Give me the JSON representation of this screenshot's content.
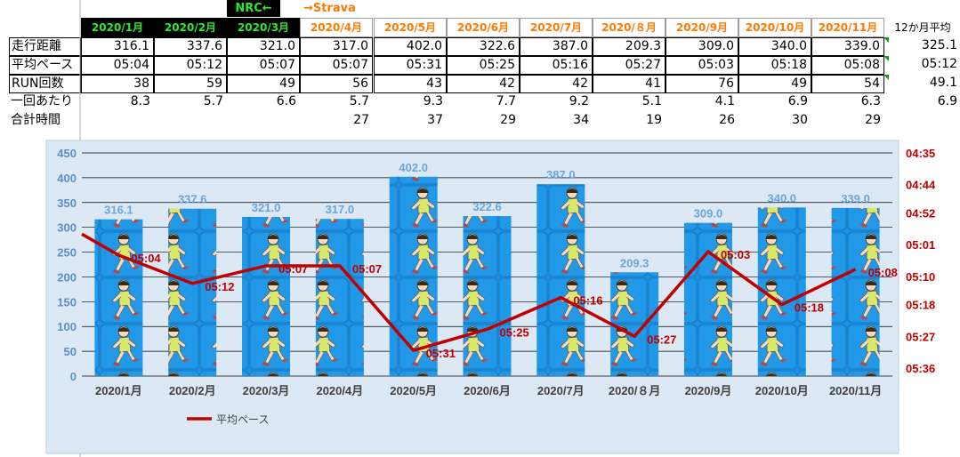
{
  "banner": {
    "left": "NRC←",
    "right": "→Strava"
  },
  "table": {
    "months": [
      {
        "label": "2020/1月",
        "src": "nrc"
      },
      {
        "label": "2020/2月",
        "src": "nrc"
      },
      {
        "label": "2020/3月",
        "src": "nrc"
      },
      {
        "label": "2020/4月",
        "src": "strava"
      },
      {
        "label": "2020/5月",
        "src": "strava"
      },
      {
        "label": "2020/6月",
        "src": "strava"
      },
      {
        "label": "2020/7月",
        "src": "strava"
      },
      {
        "label": "2020/８月",
        "src": "strava"
      },
      {
        "label": "2020/9月",
        "src": "strava"
      },
      {
        "label": "2020/10月",
        "src": "strava"
      },
      {
        "label": "2020/11月",
        "src": "strava"
      }
    ],
    "avg_header": "12か月平均",
    "rows": [
      {
        "label": "走行距離",
        "values": [
          "316.1",
          "337.6",
          "321.0",
          "317.0",
          "402.0",
          "322.6",
          "387.0",
          "209.3",
          "309.0",
          "340.0",
          "339.0"
        ],
        "avg": "325.1",
        "boxed": true
      },
      {
        "label": "平均ペース",
        "values": [
          "05:04",
          "05:12",
          "05:07",
          "05:07",
          "05:31",
          "05:25",
          "05:16",
          "05:27",
          "05:03",
          "05:18",
          "05:08"
        ],
        "avg": "05:12",
        "boxed": true
      },
      {
        "label": "RUN回数",
        "values": [
          "38",
          "59",
          "49",
          "56",
          "43",
          "42",
          "42",
          "41",
          "76",
          "49",
          "54"
        ],
        "avg": "49.1",
        "boxed": true
      },
      {
        "label": "一回あたり",
        "values": [
          "8.3",
          "5.7",
          "6.6",
          "5.7",
          "9.3",
          "7.7",
          "9.2",
          "5.1",
          "4.1",
          "6.9",
          "6.3"
        ],
        "avg": "6.9",
        "boxed": false
      },
      {
        "label": "合計時間",
        "values": [
          "",
          "",
          "",
          "27",
          "37",
          "29",
          "34",
          "19",
          "26",
          "30",
          "29"
        ],
        "avg": "",
        "boxed": false
      }
    ]
  },
  "chart_data": {
    "type": "bar",
    "categories": [
      "2020/1月",
      "2020/2月",
      "2020/3月",
      "2020/4月",
      "2020/5月",
      "2020/6月",
      "2020/7月",
      "2020/８月",
      "2020/9月",
      "2020/10月",
      "2020/11月"
    ],
    "series": [
      {
        "values": [
          316.1,
          337.6,
          321.0,
          317.0,
          402.0,
          322.6,
          387.0,
          209.3,
          309.0,
          340.0,
          339.0
        ],
        "data_labels": [
          "316.1",
          "337.6",
          "321.0",
          "317.0",
          "402.0",
          "322.6",
          "387.0",
          "209.3",
          "309.0",
          "340.0",
          "339.0"
        ],
        "axis": "left",
        "type": "bar"
      },
      {
        "name": "平均ペース",
        "values": [
          "05:04",
          "05:12",
          "05:07",
          "05:07",
          "05:31",
          "05:25",
          "05:16",
          "05:27",
          "05:03",
          "05:18",
          "05:08"
        ],
        "axis": "right",
        "type": "line"
      }
    ],
    "left_axis": {
      "ylim": [
        0,
        450
      ],
      "ticks": [
        "0",
        "50",
        "100",
        "150",
        "200",
        "250",
        "300",
        "350",
        "400",
        "450"
      ]
    },
    "right_axis": {
      "ylim": [
        "05:36",
        "04:35"
      ],
      "ticks": [
        "04:35",
        "04:44",
        "04:52",
        "05:01",
        "05:10",
        "05:18",
        "05:27",
        "05:36"
      ]
    },
    "legend": {
      "position": "bottom-left",
      "entries": [
        "平均ペース"
      ]
    },
    "grid": true,
    "colors": {
      "bar": "#1e90e0",
      "bar_label": "#6aa5d8",
      "line": "#c00000",
      "plot_bg": "#dce9f5"
    }
  }
}
